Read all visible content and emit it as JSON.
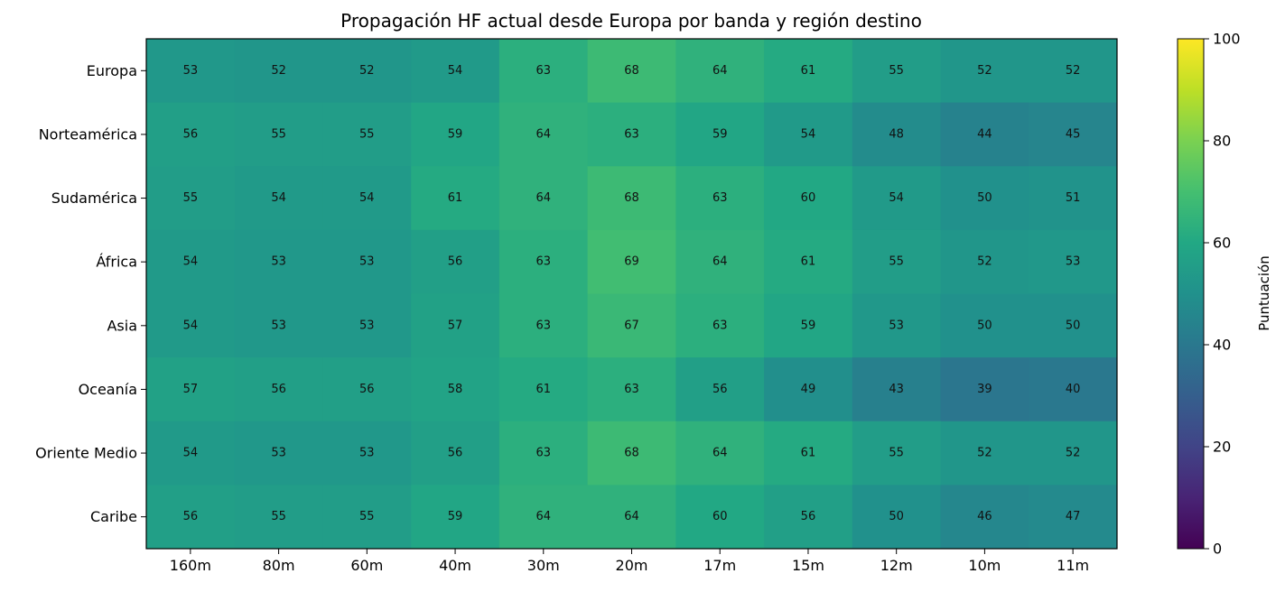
{
  "chart_data": {
    "type": "heatmap",
    "title": "Propagación HF actual desde Europa por banda y región destino",
    "x_categories": [
      "160m",
      "80m",
      "60m",
      "40m",
      "30m",
      "20m",
      "17m",
      "15m",
      "12m",
      "10m",
      "11m"
    ],
    "y_categories": [
      "Europa",
      "Norteamérica",
      "Sudamérica",
      "África",
      "Asia",
      "Oceanía",
      "Oriente Medio",
      "Caribe"
    ],
    "values": [
      [
        53,
        52,
        52,
        54,
        63,
        68,
        64,
        61,
        55,
        52,
        52
      ],
      [
        56,
        55,
        55,
        59,
        64,
        63,
        59,
        54,
        48,
        44,
        45
      ],
      [
        55,
        54,
        54,
        61,
        64,
        68,
        63,
        60,
        54,
        50,
        51
      ],
      [
        54,
        53,
        53,
        56,
        63,
        69,
        64,
        61,
        55,
        52,
        53
      ],
      [
        54,
        53,
        53,
        57,
        63,
        67,
        63,
        59,
        53,
        50,
        50
      ],
      [
        57,
        56,
        56,
        58,
        61,
        63,
        56,
        49,
        43,
        39,
        40
      ],
      [
        54,
        53,
        53,
        56,
        63,
        68,
        64,
        61,
        55,
        52,
        52
      ],
      [
        56,
        55,
        55,
        59,
        64,
        64,
        60,
        56,
        50,
        46,
        47
      ]
    ],
    "colormap": "viridis",
    "vmin": 0,
    "vmax": 100,
    "colorbar_label": "Puntuación",
    "colorbar_ticks": [
      "0",
      "20",
      "40",
      "60",
      "80",
      "100"
    ],
    "grid": false
  }
}
